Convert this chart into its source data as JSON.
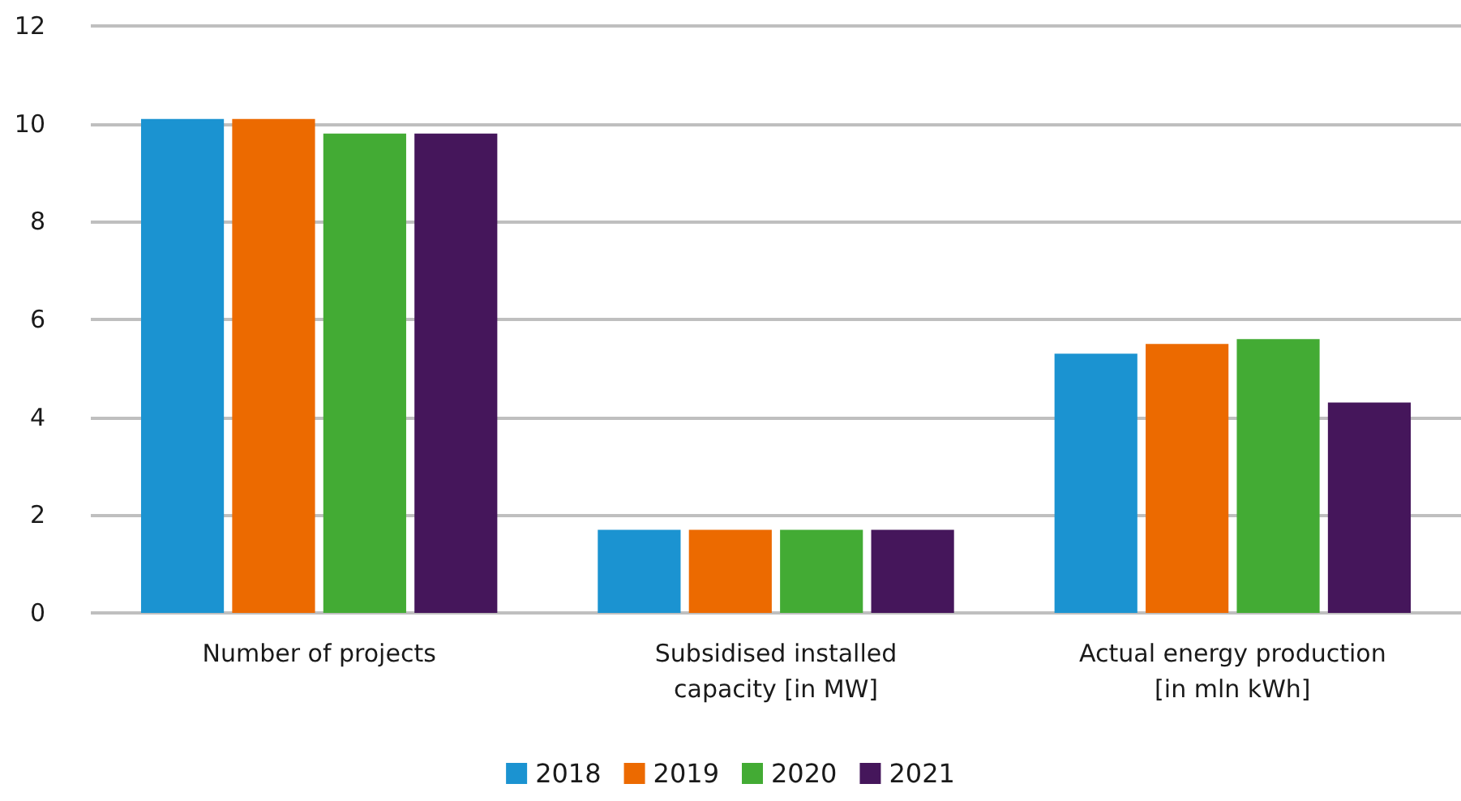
{
  "chart_data": {
    "type": "bar",
    "categories": [
      "Number of projects",
      "Subsidised installed\ncapacity [in MW]",
      "Actual energy production\n[in mln kWh]"
    ],
    "series": [
      {
        "name": "2018",
        "color": "#1b93d1",
        "values": [
          10.1,
          1.7,
          5.3
        ]
      },
      {
        "name": "2019",
        "color": "#ec6a00",
        "values": [
          10.1,
          1.7,
          5.5
        ]
      },
      {
        "name": "2020",
        "color": "#43ab34",
        "values": [
          9.8,
          1.7,
          5.6
        ]
      },
      {
        "name": "2021",
        "color": "#45165b",
        "values": [
          9.8,
          1.7,
          4.3
        ]
      }
    ],
    "ylim": [
      0,
      12
    ],
    "yticks": [
      0,
      2,
      4,
      6,
      8,
      10,
      12
    ],
    "grid": "y",
    "legend": "bottom"
  }
}
